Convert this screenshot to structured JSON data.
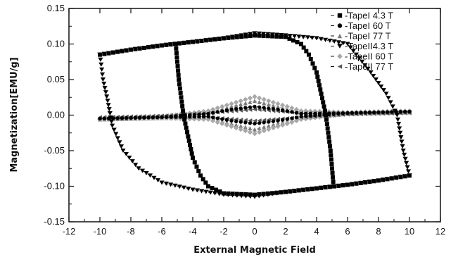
{
  "chart_data": {
    "type": "scatter",
    "title": "",
    "xlabel": "External Magnetic Field",
    "ylabel": "Magnetization[EMU/g]",
    "xlim": [
      -12,
      12
    ],
    "ylim": [
      -0.15,
      0.15
    ],
    "x_ticks": [
      "-12",
      "-10",
      "-8",
      "-6",
      "-4",
      "-2",
      "0",
      "2",
      "4",
      "6",
      "8",
      "10",
      "12"
    ],
    "y_ticks": [
      "-0.15",
      "-0.10",
      "-0.05",
      "0.00",
      "0.05",
      "0.10",
      "0.15"
    ],
    "legend_position": "top-right",
    "grid": false,
    "series": [
      {
        "name": "Tape I 4.3 T",
        "legend_label": "-TapeI 4.3 T",
        "marker": "square",
        "color": "#000000",
        "branches": [
          [
            [
              -10,
              -0.085
            ],
            [
              -8,
              -0.092
            ],
            [
              -6,
              -0.098
            ],
            [
              -4,
              -0.103
            ],
            [
              -2,
              -0.108
            ],
            [
              0,
              -0.112
            ],
            [
              2,
              -0.11
            ],
            [
              3,
              -0.106
            ],
            [
              3.5,
              -0.1
            ],
            [
              3.9,
              -0.08
            ],
            [
              4.2,
              -0.05
            ],
            [
              4.5,
              0
            ],
            [
              4.8,
              -0.05
            ],
            [
              5.0,
              -0.1
            ]
          ],
          [
            [
              10,
              0.085
            ],
            [
              8,
              0.092
            ],
            [
              6,
              0.098
            ],
            [
              4,
              0.103
            ],
            [
              2,
              0.108
            ],
            [
              0,
              0.112
            ],
            [
              -2,
              0.11
            ],
            [
              -3,
              0.106
            ],
            [
              -3.5,
              0.1
            ],
            [
              -3.9,
              0.08
            ],
            [
              -4.2,
              0.05
            ],
            [
              -4.5,
              0
            ],
            [
              -4.8,
              0.05
            ],
            [
              -5.0,
              0.1
            ]
          ]
        ],
        "upper_branch": [
          [
            -10,
            0.085
          ],
          [
            -8,
            0.092
          ],
          [
            -6,
            0.098
          ],
          [
            -4,
            0.103
          ],
          [
            -2,
            0.108
          ],
          [
            0,
            0.112
          ],
          [
            2,
            0.11
          ],
          [
            3,
            0.1
          ],
          [
            3.5,
            0.085
          ],
          [
            4,
            0.06
          ],
          [
            4.3,
            0.03
          ],
          [
            4.6,
            0
          ],
          [
            4.9,
            -0.05
          ],
          [
            5.1,
            -0.1
          ]
        ],
        "lower_branch": [
          [
            10,
            -0.085
          ],
          [
            8,
            -0.092
          ],
          [
            6,
            -0.098
          ],
          [
            4,
            -0.103
          ],
          [
            2,
            -0.108
          ],
          [
            0,
            -0.112
          ],
          [
            -2,
            -0.11
          ],
          [
            -3,
            -0.1
          ],
          [
            -3.5,
            -0.085
          ],
          [
            -4,
            -0.06
          ],
          [
            -4.3,
            -0.03
          ],
          [
            -4.6,
            0
          ],
          [
            -4.9,
            0.05
          ],
          [
            -5.1,
            0.1
          ]
        ]
      },
      {
        "name": "Tape I 60 T",
        "legend_label": "-TapeI 60 T",
        "marker": "circle",
        "color": "#000000",
        "upper_branch": [
          [
            -10,
            -0.005
          ],
          [
            -6,
            -0.003
          ],
          [
            -3,
            0.002
          ],
          [
            -1.5,
            0.008
          ],
          [
            0,
            0.012
          ],
          [
            1.5,
            0.008
          ],
          [
            3,
            0.002
          ],
          [
            6,
            0.003
          ],
          [
            10,
            0.005
          ]
        ],
        "lower_branch": [
          [
            10,
            0.005
          ],
          [
            6,
            0.003
          ],
          [
            3,
            -0.002
          ],
          [
            1.5,
            -0.008
          ],
          [
            0,
            -0.012
          ],
          [
            -1.5,
            -0.008
          ],
          [
            -3,
            -0.002
          ],
          [
            -6,
            -0.003
          ],
          [
            -10,
            -0.005
          ]
        ]
      },
      {
        "name": "Tape I 77 T",
        "legend_label": "-TapeI 77 T",
        "marker": "triangle-up",
        "color": "#7a7a7a",
        "upper_branch": [
          [
            -10,
            -0.004
          ],
          [
            -6,
            -0.002
          ],
          [
            -3,
            0.004
          ],
          [
            -1.5,
            0.012
          ],
          [
            0,
            0.02
          ],
          [
            1.5,
            0.012
          ],
          [
            3,
            0.004
          ],
          [
            6,
            0.004
          ],
          [
            10,
            0.006
          ]
        ],
        "lower_branch": [
          [
            10,
            0.004
          ],
          [
            6,
            0.002
          ],
          [
            3,
            -0.004
          ],
          [
            1.5,
            -0.012
          ],
          [
            0,
            -0.02
          ],
          [
            -1.5,
            -0.012
          ],
          [
            -3,
            -0.004
          ],
          [
            -6,
            -0.004
          ],
          [
            -10,
            -0.006
          ]
        ]
      },
      {
        "name": "Tape II 4.3 T",
        "legend_label": "-TapeII4.3 T",
        "marker": "triangle-down",
        "color": "#000000",
        "upper_branch": [
          [
            -10,
            0.085
          ],
          [
            -8,
            0.092
          ],
          [
            -6,
            0.098
          ],
          [
            -4,
            0.103
          ],
          [
            -2,
            0.108
          ],
          [
            0,
            0.115
          ],
          [
            2,
            0.112
          ],
          [
            4,
            0.108
          ],
          [
            6,
            0.1
          ],
          [
            7.5,
            0.06
          ],
          [
            8.5,
            0.03
          ],
          [
            9.2,
            0
          ],
          [
            9.6,
            -0.05
          ],
          [
            10,
            -0.085
          ]
        ],
        "lower_branch": [
          [
            10,
            -0.085
          ],
          [
            8,
            -0.092
          ],
          [
            6,
            -0.098
          ],
          [
            4,
            -0.103
          ],
          [
            2,
            -0.108
          ],
          [
            0,
            -0.115
          ],
          [
            -2,
            -0.112
          ],
          [
            -4,
            -0.105
          ],
          [
            -6,
            -0.095
          ],
          [
            -7.5,
            -0.075
          ],
          [
            -8.5,
            -0.05
          ],
          [
            -9.2,
            -0.015
          ],
          [
            -9.5,
            0.02
          ],
          [
            -9.8,
            0.05
          ],
          [
            -10,
            0.085
          ]
        ]
      },
      {
        "name": "Tape II 60 T",
        "legend_label": "-TapeII 60 T",
        "marker": "diamond",
        "color": "#a8a8a8",
        "upper_branch": [
          [
            -10,
            -0.005
          ],
          [
            -6,
            -0.002
          ],
          [
            -3,
            0.006
          ],
          [
            -1.5,
            0.016
          ],
          [
            0,
            0.026
          ],
          [
            1.5,
            0.016
          ],
          [
            3,
            0.006
          ],
          [
            6,
            0.004
          ],
          [
            10,
            0.006
          ]
        ],
        "lower_branch": [
          [
            10,
            0.005
          ],
          [
            6,
            0.002
          ],
          [
            3,
            -0.006
          ],
          [
            1.5,
            -0.016
          ],
          [
            0,
            -0.026
          ],
          [
            -1.5,
            -0.016
          ],
          [
            -3,
            -0.006
          ],
          [
            -6,
            -0.004
          ],
          [
            -10,
            -0.006
          ]
        ]
      },
      {
        "name": "Tape II 77 T",
        "legend_label": "-TapeII 77 T",
        "marker": "triangle-left",
        "color": "#555555",
        "upper_branch": [
          [
            -10,
            -0.003
          ],
          [
            -6,
            -0.001
          ],
          [
            -3,
            0.003
          ],
          [
            0,
            0.008
          ],
          [
            3,
            0.003
          ],
          [
            6,
            0.002
          ],
          [
            10,
            0.004
          ]
        ],
        "lower_branch": [
          [
            10,
            0.003
          ],
          [
            6,
            0.001
          ],
          [
            3,
            -0.003
          ],
          [
            0,
            -0.008
          ],
          [
            -3,
            -0.003
          ],
          [
            -6,
            -0.002
          ],
          [
            -10,
            -0.004
          ]
        ]
      }
    ]
  },
  "colors": {
    "axis": "#111111",
    "background": "#ffffff"
  }
}
